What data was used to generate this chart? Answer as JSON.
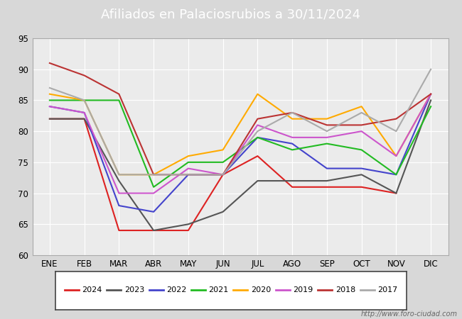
{
  "title": "Afiliados en Palaciosrubios a 30/11/2024",
  "title_bg_color": "#5b8db8",
  "xlabel": "",
  "ylabel": "",
  "ylim": [
    60,
    95
  ],
  "yticks": [
    60,
    65,
    70,
    75,
    80,
    85,
    90,
    95
  ],
  "xtick_labels": [
    "ENE",
    "FEB",
    "MAR",
    "ABR",
    "MAY",
    "JUN",
    "JUL",
    "AGO",
    "SEP",
    "OCT",
    "NOV",
    "DIC"
  ],
  "watermark": "http://www.foro-ciudad.com",
  "series": {
    "2024": {
      "color": "#dd2222",
      "data": [
        82,
        82,
        64,
        64,
        64,
        73,
        76,
        71,
        71,
        71,
        70,
        null
      ]
    },
    "2023": {
      "color": "#555555",
      "data": [
        82,
        82,
        72,
        64,
        65,
        67,
        72,
        72,
        72,
        73,
        70,
        85
      ]
    },
    "2022": {
      "color": "#4444cc",
      "data": [
        84,
        83,
        68,
        67,
        73,
        73,
        79,
        78,
        74,
        74,
        73,
        86
      ]
    },
    "2021": {
      "color": "#22bb22",
      "data": [
        85,
        85,
        85,
        71,
        75,
        75,
        79,
        77,
        78,
        77,
        73,
        84
      ]
    },
    "2020": {
      "color": "#ffaa00",
      "data": [
        86,
        85,
        73,
        73,
        76,
        77,
        86,
        82,
        82,
        84,
        76,
        86
      ]
    },
    "2019": {
      "color": "#cc55cc",
      "data": [
        84,
        83,
        70,
        70,
        74,
        73,
        81,
        79,
        79,
        80,
        76,
        86
      ]
    },
    "2018": {
      "color": "#bb3333",
      "data": [
        91,
        89,
        86,
        73,
        73,
        73,
        82,
        83,
        81,
        81,
        82,
        86
      ]
    },
    "2017": {
      "color": "#aaaaaa",
      "data": [
        87,
        85,
        73,
        73,
        73,
        73,
        80,
        83,
        80,
        83,
        80,
        90
      ]
    }
  },
  "outer_bg_color": "#d8d8d8",
  "plot_bg_color": "#ebebeb",
  "grid_color": "#ffffff",
  "legend_order": [
    "2024",
    "2023",
    "2022",
    "2021",
    "2020",
    "2019",
    "2018",
    "2017"
  ]
}
